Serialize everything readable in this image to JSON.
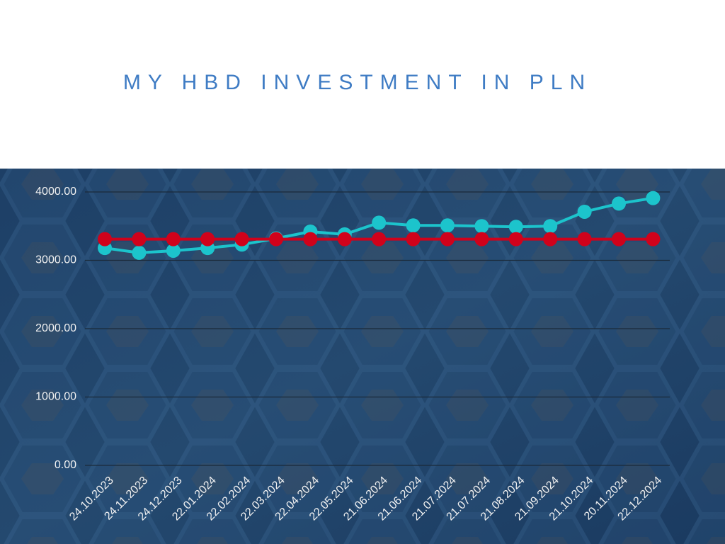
{
  "chart_data": {
    "type": "line",
    "title": "MY HBD INVESTMENT IN PLN",
    "categories": [
      "24.10.2023",
      "24.11.2023",
      "24.12.2023",
      "22.01.2024",
      "22.02.2024",
      "22.03.2024",
      "22.04.2024",
      "22.05.2024",
      "21.06.2024",
      "21.06.2024",
      "21.07.2024",
      "21.07.2024",
      "21.08.2024",
      "21.09.2024",
      "21.10.2024",
      "20.11.2024",
      "22.12.2024"
    ],
    "series": [
      {
        "color": "#1cc4cc",
        "values": [
          3180,
          3110,
          3140,
          3180,
          3230,
          3320,
          3420,
          3380,
          3550,
          3510,
          3510,
          3500,
          3490,
          3500,
          3710,
          3830,
          3910
        ]
      },
      {
        "color": "#d0021b",
        "values": [
          3310,
          3310,
          3310,
          3310,
          3310,
          3310,
          3310,
          3310,
          3310,
          3310,
          3310,
          3310,
          3310,
          3310,
          3310,
          3310,
          3310
        ]
      }
    ],
    "ylim": [
      0,
      4000
    ],
    "yticks": [
      {
        "value": 0,
        "label": "0.00"
      },
      {
        "value": 1000,
        "label": "1000.00"
      },
      {
        "value": 2000,
        "label": "2000.00"
      },
      {
        "value": 3000,
        "label": "3000.00"
      },
      {
        "value": 4000,
        "label": "4000.00"
      }
    ],
    "grid": true
  }
}
